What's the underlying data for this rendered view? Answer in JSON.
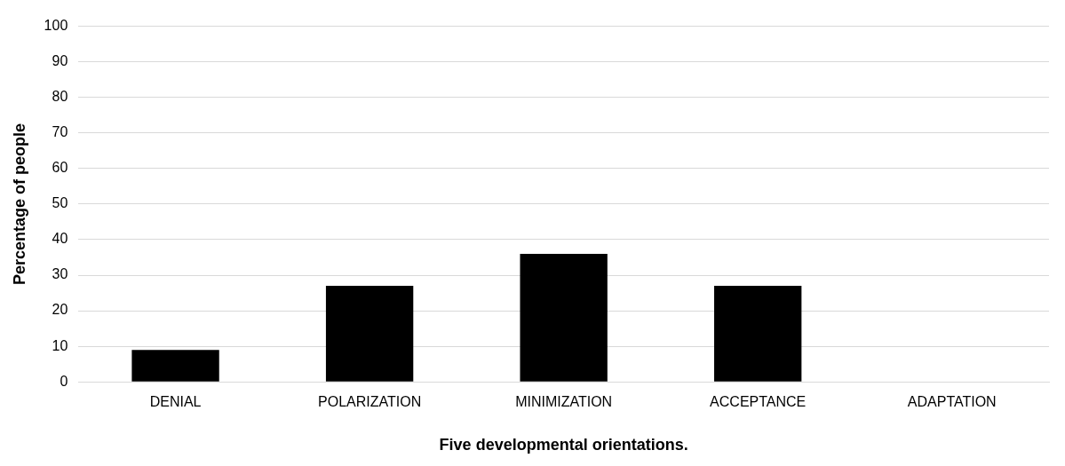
{
  "chart_data": {
    "type": "bar",
    "xlabel": "Five developmental orientations.",
    "ylabel": "Percentage of people",
    "categories": [
      "DENIAL",
      "POLARIZATION",
      "MINIMIZATION",
      "ACCEPTANCE",
      "ADAPTATION"
    ],
    "values": [
      9,
      27,
      36,
      27,
      0
    ],
    "color": "#000000",
    "ylim": [
      0,
      100
    ],
    "yticks": [
      0,
      10,
      20,
      30,
      40,
      50,
      60,
      70,
      80,
      90,
      100
    ],
    "grid": "y",
    "legend": false
  }
}
